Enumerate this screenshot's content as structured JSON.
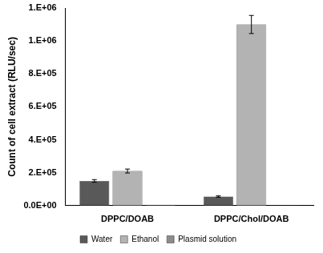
{
  "chart_data": {
    "type": "bar",
    "y_label": "Count of cell extract (RLU/sec)",
    "categories": [
      "DPPC/DOAB",
      "DPPC/Chol/DOAB"
    ],
    "series": [
      {
        "name": "Water",
        "color": "#595959",
        "values": [
          150000,
          55000
        ],
        "errors": [
          8000,
          4000
        ]
      },
      {
        "name": "Ethanol",
        "color": "#b3b3b3",
        "values": [
          210000,
          1100000
        ],
        "errors": [
          12000,
          55000
        ]
      },
      {
        "name": "Plasmid solution",
        "color": "#8c8c8c",
        "values": [
          5000,
          2000
        ],
        "errors": [
          0,
          0
        ]
      }
    ],
    "ylim": [
      0,
      1200000
    ],
    "yticks": [
      {
        "value": 0,
        "label": "0.0E+00"
      },
      {
        "value": 200000,
        "label": "2.E+05"
      },
      {
        "value": 400000,
        "label": "4.E+05"
      },
      {
        "value": 600000,
        "label": "6.E+05"
      },
      {
        "value": 800000,
        "label": "8.E+05"
      },
      {
        "value": 1000000,
        "label": "1.E+06"
      },
      {
        "value": 1200000,
        "label": "1.E+06"
      }
    ],
    "grid": false,
    "legend": "bottom"
  }
}
